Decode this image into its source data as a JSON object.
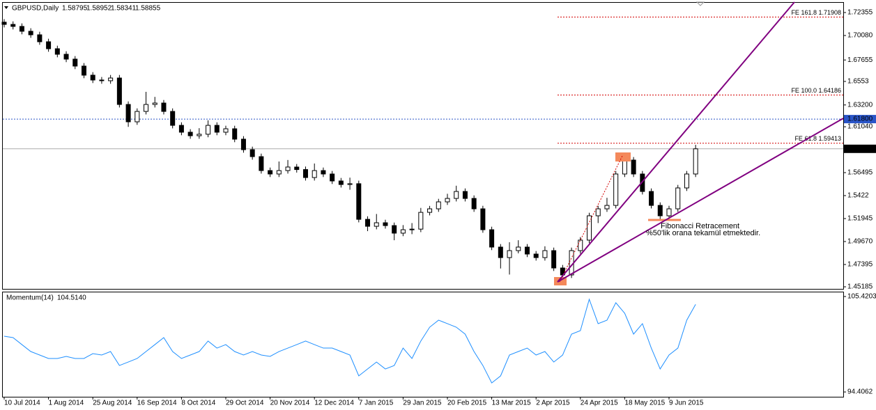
{
  "chart_data": {
    "type": "candlestick",
    "title": "GBPUSD,Daily",
    "header_values": [
      "1.58795",
      "1.58952",
      "1.58341",
      "1.58855"
    ],
    "categories": [
      "10 Jul 2014",
      null,
      null,
      null,
      null,
      "1 Aug 2014",
      null,
      null,
      null,
      null,
      "25 Aug 2014",
      null,
      null,
      null,
      null,
      "16 Sep 2014",
      null,
      null,
      null,
      null,
      "8 Oct 2014",
      null,
      null,
      null,
      null,
      "29 Oct 2014",
      null,
      null,
      null,
      null,
      "20 Nov 2014",
      null,
      null,
      null,
      null,
      "12 Dec 2014",
      null,
      null,
      null,
      null,
      "7 Jan 2015",
      null,
      null,
      null,
      null,
      "29 Jan 2015",
      null,
      null,
      null,
      null,
      "20 Feb 2015",
      null,
      null,
      null,
      null,
      "13 Mar 2015",
      null,
      null,
      null,
      null,
      "2 Apr 2015",
      null,
      null,
      null,
      null,
      "24 Apr 2015",
      null,
      null,
      null,
      null,
      "18 May 2015",
      null,
      null,
      null,
      null,
      "9 Jun 2015",
      null,
      null,
      null
    ],
    "ohlc": [
      [
        1.714,
        1.717,
        1.7088,
        1.7118
      ],
      [
        1.7118,
        1.7148,
        1.7068,
        1.7098
      ],
      [
        1.7098,
        1.7128,
        1.702,
        1.705
      ],
      [
        1.705,
        1.708,
        1.6985,
        1.7015
      ],
      [
        1.7015,
        1.7045,
        1.6916,
        1.6946
      ],
      [
        1.6946,
        1.6976,
        1.6847,
        1.6877
      ],
      [
        1.6877,
        1.6907,
        1.6792,
        1.6822
      ],
      [
        1.6822,
        1.6852,
        1.6744,
        1.6774
      ],
      [
        1.6774,
        1.6804,
        1.6675,
        1.6705
      ],
      [
        1.6705,
        1.6735,
        1.6585,
        1.6615
      ],
      [
        1.6615,
        1.6645,
        1.6537,
        1.6567
      ],
      [
        1.6567,
        1.6597,
        1.653,
        1.656
      ],
      [
        1.656,
        1.6617,
        1.653,
        1.6587
      ],
      [
        1.6587,
        1.6617,
        1.6295,
        1.6325
      ],
      [
        1.6325,
        1.6355,
        1.6103,
        1.6153
      ],
      [
        1.6153,
        1.6286,
        1.6123,
        1.6256
      ],
      [
        1.6256,
        1.645,
        1.6226,
        1.6325
      ],
      [
        1.6325,
        1.64,
        1.6295,
        1.6339
      ],
      [
        1.6339,
        1.6369,
        1.6226,
        1.6256
      ],
      [
        1.6256,
        1.6286,
        1.6088,
        1.6118
      ],
      [
        1.6118,
        1.6148,
        1.602,
        1.605
      ],
      [
        1.605,
        1.608,
        1.5985,
        1.6015
      ],
      [
        1.6015,
        1.609,
        1.5985,
        1.603
      ],
      [
        1.603,
        1.6168,
        1.6,
        1.6118
      ],
      [
        1.6118,
        1.6148,
        1.602,
        1.605
      ],
      [
        1.605,
        1.6114,
        1.602,
        1.6084
      ],
      [
        1.6084,
        1.6114,
        1.5951,
        1.5981
      ],
      [
        1.5981,
        1.6011,
        1.5847,
        1.5877
      ],
      [
        1.5877,
        1.5907,
        1.5778,
        1.5808
      ],
      [
        1.5808,
        1.5838,
        1.564,
        1.567
      ],
      [
        1.567,
        1.57,
        1.5606,
        1.5636
      ],
      [
        1.5636,
        1.576,
        1.5606,
        1.567
      ],
      [
        1.567,
        1.5775,
        1.564,
        1.5705
      ],
      [
        1.5705,
        1.5735,
        1.565,
        1.568
      ],
      [
        1.568,
        1.571,
        1.5571,
        1.5601
      ],
      [
        1.5601,
        1.574,
        1.5571,
        1.567
      ],
      [
        1.567,
        1.57,
        1.5606,
        1.5636
      ],
      [
        1.5636,
        1.5666,
        1.5537,
        1.5567
      ],
      [
        1.5567,
        1.5597,
        1.5502,
        1.5532
      ],
      [
        1.5532,
        1.56,
        1.548,
        1.554
      ],
      [
        1.554,
        1.557,
        1.5157,
        1.5187
      ],
      [
        1.5187,
        1.5217,
        1.507,
        1.5118
      ],
      [
        1.5118,
        1.524,
        1.5088,
        1.5153
      ],
      [
        1.5153,
        1.5183,
        1.5095,
        1.5125
      ],
      [
        1.5125,
        1.5155,
        1.498,
        1.505
      ],
      [
        1.505,
        1.513,
        1.502,
        1.5084
      ],
      [
        1.5084,
        1.515,
        1.504,
        1.509
      ],
      [
        1.509,
        1.53,
        1.506,
        1.5256
      ],
      [
        1.5256,
        1.532,
        1.5226,
        1.5291
      ],
      [
        1.5291,
        1.539,
        1.5261,
        1.536
      ],
      [
        1.536,
        1.544,
        1.533,
        1.5394
      ],
      [
        1.5394,
        1.552,
        1.5364,
        1.5463
      ],
      [
        1.5463,
        1.5493,
        1.5364,
        1.5394
      ],
      [
        1.5394,
        1.5424,
        1.5261,
        1.5291
      ],
      [
        1.5291,
        1.5321,
        1.5054,
        1.5084
      ],
      [
        1.5084,
        1.5114,
        1.4882,
        1.4912
      ],
      [
        1.4912,
        1.4942,
        1.47,
        1.4808
      ],
      [
        1.4808,
        1.496,
        1.464,
        1.4877
      ],
      [
        1.4877,
        1.498,
        1.485,
        1.4912
      ],
      [
        1.4912,
        1.4942,
        1.4813,
        1.4843
      ],
      [
        1.4843,
        1.4873,
        1.4778,
        1.4808
      ],
      [
        1.4808,
        1.492,
        1.4778,
        1.4877
      ],
      [
        1.4877,
        1.4907,
        1.4675,
        1.4705
      ],
      [
        1.4705,
        1.4735,
        1.457,
        1.4636
      ],
      [
        1.4636,
        1.4907,
        1.4606,
        1.4877
      ],
      [
        1.4877,
        1.5011,
        1.4847,
        1.4981
      ],
      [
        1.4981,
        1.5252,
        1.4951,
        1.5222
      ],
      [
        1.5222,
        1.5321,
        1.515,
        1.5291
      ],
      [
        1.5291,
        1.54,
        1.5261,
        1.5325
      ],
      [
        1.5325,
        1.5666,
        1.5295,
        1.5636
      ],
      [
        1.5636,
        1.5815,
        1.5606,
        1.5774
      ],
      [
        1.5774,
        1.5804,
        1.5606,
        1.5636
      ],
      [
        1.5636,
        1.5666,
        1.5433,
        1.5463
      ],
      [
        1.5463,
        1.5493,
        1.5295,
        1.5325
      ],
      [
        1.5325,
        1.5355,
        1.517,
        1.5222
      ],
      [
        1.5222,
        1.5321,
        1.5192,
        1.5291
      ],
      [
        1.5291,
        1.5528,
        1.5261,
        1.5498
      ],
      [
        1.5498,
        1.5666,
        1.5468,
        1.5636
      ],
      [
        1.5636,
        1.5925,
        1.5606,
        1.58855
      ]
    ],
    "ylim": [
      1.4498,
      1.7339
    ],
    "yticks": [
      1.72355,
      {
        "value": 1.7008,
        "label": "1.70080"
      },
      1.67655,
      1.6553,
      {
        "value": 1.632,
        "label": "1.63200"
      },
      {
        "value": 1.6104,
        "label": "1.61040"
      },
      1.56495,
      1.5422,
      1.51945,
      {
        "value": 1.4967,
        "label": "1.49670"
      },
      1.47395,
      1.45185
    ],
    "levels": [
      {
        "label": "FE 161.8 1.71908",
        "value": 1.71908
      },
      {
        "label": "FE 100.0 1.64186",
        "value": 1.64186
      },
      {
        "label": "FE 61.8 1.59413",
        "value": 1.59413
      }
    ],
    "level_color": "#d40000",
    "reference_line": {
      "value": 1.618,
      "label": "1.61800",
      "color": "#2a55c8"
    },
    "current_price": {
      "value": 1.58855,
      "label": "1.58855"
    },
    "annotations": [
      "Fibonacci Retracement",
      "%50'lik orana tekamül etmektedir."
    ],
    "indicator": {
      "type": "line",
      "title": "Momentum(14)",
      "value_label": "104.5140",
      "color": "#1e8fff",
      "values": [
        100.84,
        100.68,
        99.87,
        99.07,
        98.67,
        98.27,
        98.27,
        98.51,
        98.27,
        98.27,
        98.83,
        98.67,
        99.07,
        97.46,
        97.86,
        98.27,
        99.07,
        99.87,
        100.68,
        99.07,
        98.27,
        98.67,
        99.07,
        100.28,
        99.47,
        99.87,
        99.07,
        98.67,
        99.07,
        98.67,
        98.51,
        99.07,
        99.47,
        99.87,
        100.28,
        99.87,
        99.47,
        99.47,
        99.07,
        98.67,
        96.26,
        97.06,
        97.86,
        97.06,
        97.46,
        99.47,
        98.27,
        100.28,
        101.88,
        102.69,
        102.29,
        101.88,
        101.08,
        99.07,
        97.46,
        95.45,
        96.26,
        98.67,
        99.07,
        99.47,
        98.67,
        99.07,
        97.86,
        98.67,
        101.08,
        101.48,
        105.1,
        102.29,
        102.69,
        104.7,
        103.49,
        101.08,
        102.29,
        99.47,
        97.06,
        98.67,
        99.47,
        102.69,
        104.514
      ],
      "ylim": [
        93.85,
        105.9
      ],
      "yticks": [
        105.4203,
        94.4062
      ]
    }
  }
}
